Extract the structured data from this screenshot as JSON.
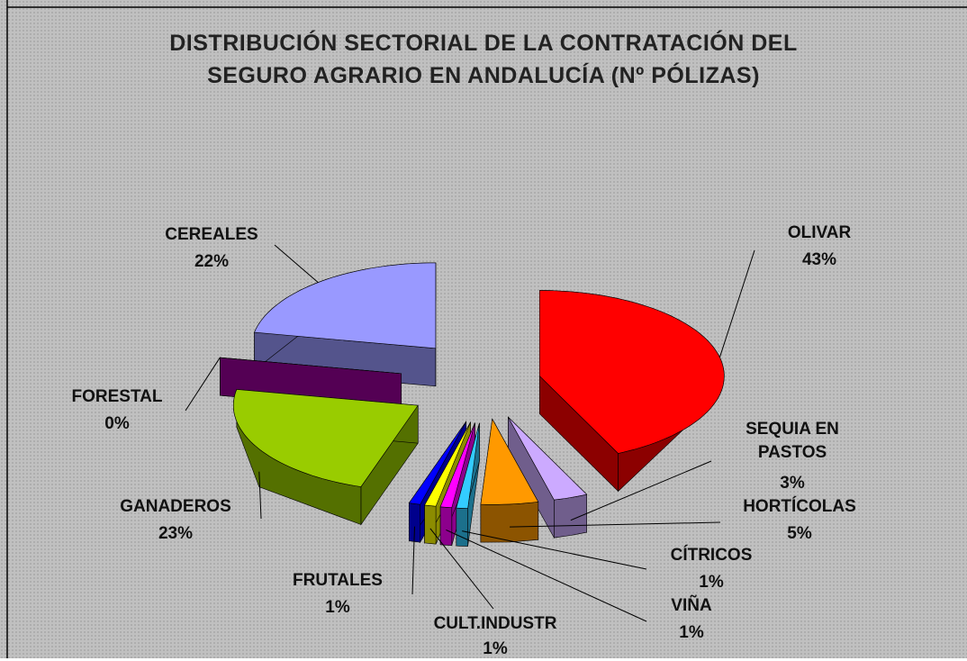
{
  "chart_data": {
    "type": "pie",
    "title": [
      "DISTRIBUCIÓN SECTORIAL DE LA CONTRATACIÓN DEL",
      "SEGURO AGRARIO EN ANDALUCÍA (Nº PÓLIZAS)"
    ],
    "categories": [
      "OLIVAR",
      "SEQUIA EN PASTOS",
      "HORTÍCOLAS",
      "CÍTRICOS",
      "VIÑA",
      "CULT.INDUSTR",
      "FRUTALES",
      "GANADEROS",
      "FORESTAL",
      "CEREALES"
    ],
    "values": [
      43,
      3,
      5,
      1,
      1,
      1,
      1,
      23,
      0,
      22
    ],
    "value_labels": [
      "43%",
      "3%",
      "5%",
      "1%",
      "1%",
      "1%",
      "1%",
      "23%",
      "0%",
      "22%"
    ],
    "colors": [
      "#ff0000",
      "#ccaaff",
      "#ff9900",
      "#33ccff",
      "#ff00ff",
      "#ffff00",
      "#0000ff",
      "#99cc00",
      "#990099",
      "#9999ff"
    ]
  }
}
